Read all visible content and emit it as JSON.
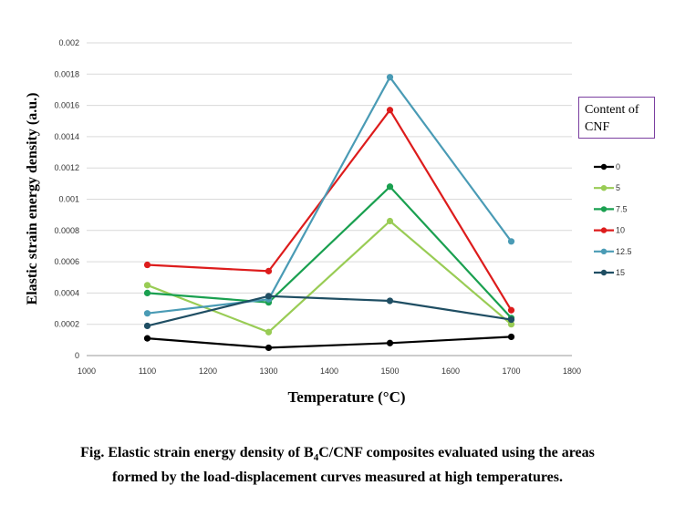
{
  "chart_data": {
    "type": "line",
    "xlabel": "Temperature (°C)",
    "ylabel": "Elastic strain energy density (a.u.)",
    "xlim": [
      1000,
      1800
    ],
    "ylim": [
      0,
      0.002
    ],
    "x_ticks": [
      "1000",
      "1100",
      "1200",
      "1300",
      "1400",
      "1500",
      "1600",
      "1700",
      "1800"
    ],
    "y_ticks": [
      "0",
      "0.0002",
      "0.0004",
      "0.0006",
      "0.0008",
      "0.001",
      "0.0012",
      "0.0014",
      "0.0016",
      "0.0018",
      "0.002"
    ],
    "grid": "horizontal",
    "legend_title": "Content of CNF",
    "legend_placement": "right",
    "x": [
      1100,
      1300,
      1500,
      1700
    ],
    "series": [
      {
        "name": "0",
        "color": "#000000",
        "values": [
          0.00011,
          5e-05,
          8e-05,
          0.00012
        ]
      },
      {
        "name": "5",
        "color": "#99cc55",
        "values": [
          0.00045,
          0.00015,
          0.00086,
          0.0002
        ]
      },
      {
        "name": "7.5",
        "color": "#1aa050",
        "values": [
          0.0004,
          0.00034,
          0.00108,
          0.00024
        ]
      },
      {
        "name": "10",
        "color": "#dd1c1c",
        "values": [
          0.00058,
          0.00054,
          0.00157,
          0.00029
        ]
      },
      {
        "name": "12.5",
        "color": "#4a9bb5",
        "values": [
          0.00027,
          0.00036,
          0.00178,
          0.00073
        ]
      },
      {
        "name": "15",
        "color": "#1f4e63",
        "values": [
          0.00019,
          0.00038,
          0.00035,
          0.00023
        ]
      }
    ]
  },
  "caption": {
    "line1_pre": "Fig. Elastic strain energy density of B",
    "line1_sub1": "4",
    "line1_mid": "C/CNF composites evaluated using the areas",
    "line2": "formed by the load-displacement curves measured at high temperatures."
  },
  "legend_title_lines": [
    "Content of",
    "CNF"
  ]
}
